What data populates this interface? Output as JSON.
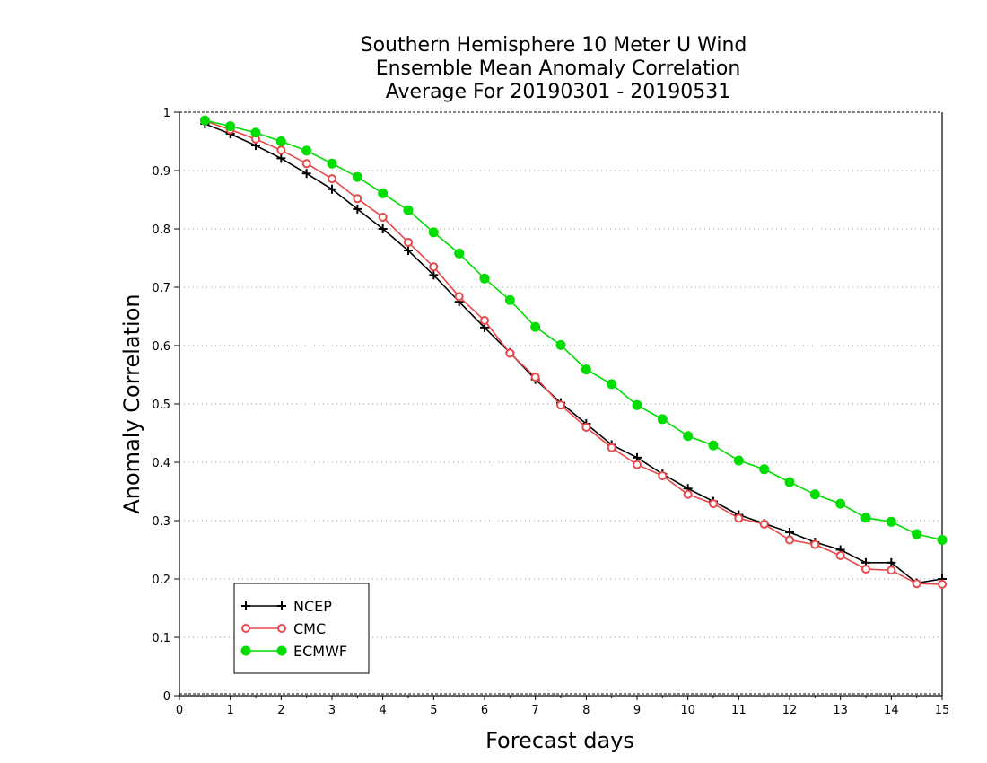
{
  "chart_data": {
    "type": "line",
    "title": [
      "Southern Hemisphere 10 Meter U Wind",
      "Ensemble Mean Anomaly Correlation",
      "Average For 20190301 - 20190531"
    ],
    "xlabel": "Forecast days",
    "ylabel": "Anomaly Correlation",
    "xlim": [
      0,
      15
    ],
    "ylim": [
      0,
      1
    ],
    "xticks": [
      "0",
      "1",
      "2",
      "3",
      "4",
      "5",
      "6",
      "7",
      "8",
      "9",
      "10",
      "11",
      "12",
      "13",
      "14",
      "15"
    ],
    "yticks": [
      "0",
      "0.1",
      "0.2",
      "0.3",
      "0.4",
      "0.5",
      "0.6",
      "0.7",
      "0.8",
      "0.9",
      "1"
    ],
    "grid": true,
    "legend_position": "bottom-left",
    "x": [
      0.5,
      1,
      1.5,
      2,
      2.5,
      3,
      3.5,
      4,
      4.5,
      5,
      5.5,
      6,
      6.5,
      7,
      7.5,
      8,
      8.5,
      9,
      9.5,
      10,
      10.5,
      11,
      11.5,
      12,
      12.5,
      13,
      13.5,
      14,
      14.5,
      15
    ],
    "series": [
      {
        "name": "NCEP",
        "color": "#000000",
        "marker": "plus",
        "values": [
          0.98,
          0.963,
          0.943,
          0.921,
          0.895,
          0.868,
          0.834,
          0.8,
          0.763,
          0.721,
          0.675,
          0.631,
          0.588,
          0.542,
          0.502,
          0.466,
          0.43,
          0.408,
          0.38,
          0.355,
          0.333,
          0.31,
          0.295,
          0.28,
          0.263,
          0.25,
          0.228,
          0.228,
          0.193,
          0.2
        ]
      },
      {
        "name": "CMC",
        "color": "#e8484a",
        "marker": "open-circle",
        "values": [
          0.985,
          0.97,
          0.954,
          0.935,
          0.912,
          0.886,
          0.852,
          0.82,
          0.777,
          0.735,
          0.684,
          0.643,
          0.587,
          0.546,
          0.498,
          0.46,
          0.425,
          0.396,
          0.377,
          0.345,
          0.329,
          0.304,
          0.294,
          0.267,
          0.259,
          0.24,
          0.217,
          0.215,
          0.192,
          0.191
        ]
      },
      {
        "name": "ECMWF",
        "color": "#00dd00",
        "marker": "filled-circle",
        "values": [
          0.986,
          0.976,
          0.965,
          0.95,
          0.934,
          0.912,
          0.889,
          0.861,
          0.832,
          0.794,
          0.758,
          0.715,
          0.678,
          0.632,
          0.601,
          0.559,
          0.534,
          0.498,
          0.474,
          0.445,
          0.429,
          0.403,
          0.388,
          0.366,
          0.345,
          0.329,
          0.305,
          0.298,
          0.277,
          0.267
        ]
      }
    ]
  }
}
